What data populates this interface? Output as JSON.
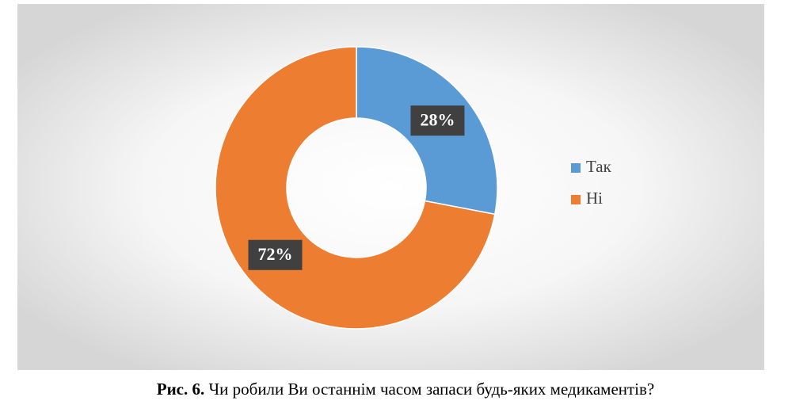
{
  "chart_data": {
    "type": "donut",
    "categories": [
      "Так",
      "Ні"
    ],
    "values": [
      28,
      72
    ],
    "value_labels": [
      "28%",
      "72%"
    ],
    "colors": [
      "#5b9bd5",
      "#ed7d31"
    ],
    "legend": "right"
  },
  "caption": {
    "label": "Рис. 6.",
    "text": "Чи робили Ви останнім часом запаси будь-яких медикаментів?"
  }
}
